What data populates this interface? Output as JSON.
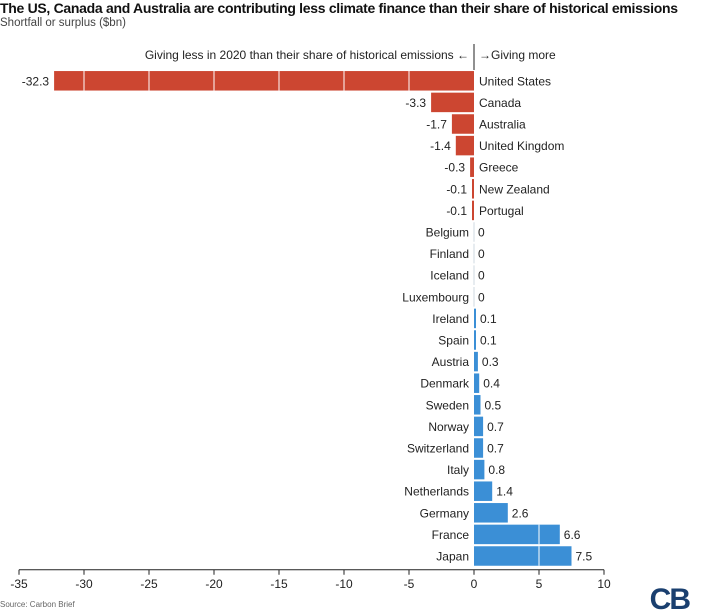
{
  "chart_data": {
    "type": "bar",
    "orientation": "horizontal",
    "title": "The US, Canada and Australia are contributing less climate finance than their share of historical emissions",
    "subtitle": "Shortfall or surplus ($bn)",
    "annotation_left": "Giving less in 2020 than their share of historical emissions ←",
    "annotation_right": "→Giving more",
    "categories": [
      "United States",
      "Canada",
      "Australia",
      "United Kingdom",
      "Greece",
      "New Zealand",
      "Portugal",
      "Belgium",
      "Finland",
      "Iceland",
      "Luxembourg",
      "Ireland",
      "Spain",
      "Austria",
      "Denmark",
      "Sweden",
      "Norway",
      "Switzerland",
      "Italy",
      "Netherlands",
      "Germany",
      "France",
      "Japan"
    ],
    "values": [
      -32.3,
      -3.3,
      -1.7,
      -1.4,
      -0.3,
      -0.1,
      -0.1,
      0,
      0,
      0,
      0,
      0.1,
      0.1,
      0.3,
      0.4,
      0.5,
      0.7,
      0.7,
      0.8,
      1.4,
      2.6,
      6.6,
      7.5
    ],
    "value_labels": [
      "-32.3",
      "-3.3",
      "-1.7",
      "-1.4",
      "-0.3",
      "-0.1",
      "-0.1",
      "0",
      "0",
      "0",
      "0",
      "0.1",
      "0.1",
      "0.3",
      "0.4",
      "0.5",
      "0.7",
      "0.7",
      "0.8",
      "1.4",
      "2.6",
      "6.6",
      "7.5"
    ],
    "xlim": [
      -35,
      10
    ],
    "xticks": [
      -35,
      -30,
      -25,
      -20,
      -15,
      -10,
      -5,
      0,
      5,
      10
    ],
    "xtick_labels": [
      "-35",
      "-30",
      "-25",
      "-20",
      "-15",
      "-10",
      "-5",
      "0",
      "5",
      "10"
    ],
    "xlabel": "",
    "ylabel": "",
    "grid": "vertical white lines inside bars",
    "legend": "none",
    "colors": {
      "negative": "#cc4631",
      "positive": "#3b8fd6",
      "axis": "#222222"
    }
  },
  "footer": {
    "source": "Source: Carbon Brief"
  },
  "logo": {
    "text": "CB"
  }
}
